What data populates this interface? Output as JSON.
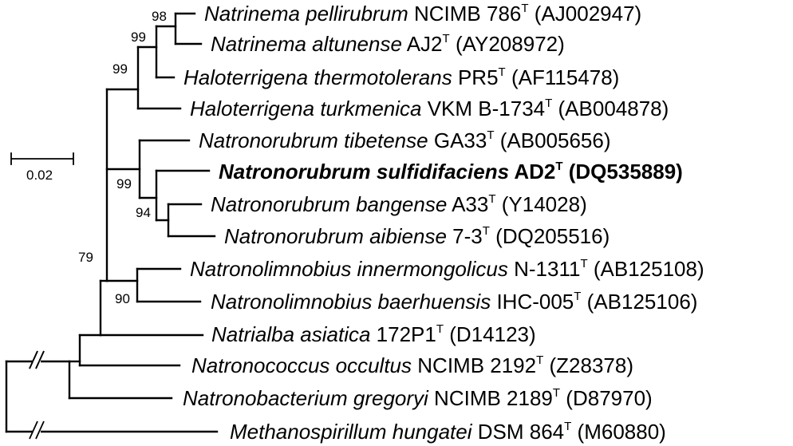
{
  "taxa": [
    {
      "name": "Natrinema pellirubrum",
      "strain": "NCIMB 786",
      "type": "T",
      "acc": "(AJ002947)"
    },
    {
      "name": "Natrinema altunense",
      "strain": "AJ2",
      "type": "T",
      "acc": "(AY208972)"
    },
    {
      "name": "Haloterrigena thermotolerans",
      "strain": "PR5",
      "type": "T",
      "acc": "(AF115478)"
    },
    {
      "name": "Haloterrigena turkmenica",
      "strain": "VKM B-1734",
      "type": "T",
      "acc": "(AB004878)"
    },
    {
      "name": "Natronorubrum tibetense",
      "strain": "GA33",
      "type": "T",
      "acc": "(AB005656)"
    },
    {
      "name": "Natronorubrum sulfidifaciens",
      "strain": "AD2",
      "type": "T",
      "acc": "(DQ535889)"
    },
    {
      "name": "Natronorubrum bangense",
      "strain": "A33",
      "type": "T",
      "acc": "(Y14028)"
    },
    {
      "name": "Natronorubrum aibiense",
      "strain": "7-3",
      "type": "T",
      "acc": "(DQ205516)"
    },
    {
      "name": "Natronolimnobius innermongolicus",
      "strain": "N-1311",
      "type": "T",
      "acc": "(AB125108)"
    },
    {
      "name": "Natronolimnobius baerhuensis",
      "strain": "IHC-005",
      "type": "T",
      "acc": "(AB125106)"
    },
    {
      "name": "Natrialba asiatica",
      "strain": "172P1",
      "type": "T",
      "acc": "(D14123)"
    },
    {
      "name": "Natronococcus occultus",
      "strain": "NCIMB 2192",
      "type": "T",
      "acc": "(Z28378)"
    },
    {
      "name": "Natronobacterium gregoryi",
      "strain": "NCIMB 2189",
      "type": "T",
      "acc": "(D87970)"
    },
    {
      "name": "Methanospirillum hungatei",
      "strain": "DSM 864",
      "type": "T",
      "acc": "(M60880)"
    }
  ],
  "bootstrap": {
    "n98": "98",
    "n99a": "99",
    "n99b": "99",
    "n99c": "99",
    "n94": "94",
    "n79": "79",
    "n90": "90"
  },
  "scale": {
    "label": "0.02"
  }
}
